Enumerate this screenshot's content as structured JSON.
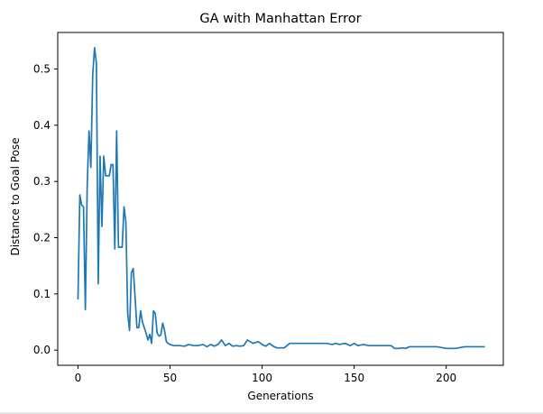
{
  "chart_data": {
    "type": "line",
    "title": "GA with Manhattan Error",
    "xlabel": "Generations",
    "ylabel": "Distance to Goal Pose",
    "xlim": [
      -11,
      231
    ],
    "ylim": [
      -0.027,
      0.565
    ],
    "xticks": [
      0,
      50,
      100,
      150,
      200
    ],
    "yticks": [
      0.0,
      0.1,
      0.2,
      0.3,
      0.4,
      0.5
    ],
    "ytick_labels": [
      "0.0",
      "0.1",
      "0.2",
      "0.3",
      "0.4",
      "0.5"
    ],
    "grid": false,
    "legend": "none",
    "line_color": "#1f77b4",
    "series": [
      {
        "x": [
          0,
          1,
          2,
          3,
          4,
          5,
          6,
          7,
          8,
          9,
          10,
          11,
          12,
          13,
          14,
          15,
          16,
          17,
          18,
          19,
          20,
          21,
          22,
          23,
          24,
          25,
          26,
          27,
          28,
          29,
          30,
          31,
          32,
          33,
          34,
          35,
          36,
          37,
          38,
          39,
          40,
          41,
          42,
          43,
          44,
          45,
          46,
          47,
          48,
          49,
          50,
          52,
          55,
          58,
          60,
          63,
          65,
          68,
          70,
          72,
          74,
          76,
          78,
          80,
          82,
          84,
          86,
          88,
          90,
          92,
          95,
          98,
          100,
          102,
          104,
          106,
          108,
          110,
          112,
          115,
          118,
          120,
          122,
          125,
          128,
          130,
          132,
          135,
          138,
          140,
          142,
          145,
          148,
          150,
          152,
          155,
          158,
          160,
          163,
          165,
          168,
          170,
          172,
          174,
          176,
          178,
          180,
          185,
          190,
          195,
          200,
          205,
          210,
          215,
          221
        ],
        "y": [
          0.09,
          0.276,
          0.258,
          0.255,
          0.072,
          0.29,
          0.39,
          0.325,
          0.49,
          0.538,
          0.51,
          0.118,
          0.345,
          0.22,
          0.345,
          0.31,
          0.31,
          0.31,
          0.33,
          0.33,
          0.18,
          0.39,
          0.183,
          0.183,
          0.183,
          0.255,
          0.228,
          0.065,
          0.035,
          0.138,
          0.145,
          0.095,
          0.04,
          0.04,
          0.07,
          0.05,
          0.04,
          0.03,
          0.018,
          0.028,
          0.012,
          0.07,
          0.065,
          0.03,
          0.025,
          0.027,
          0.048,
          0.035,
          0.015,
          0.012,
          0.01,
          0.008,
          0.008,
          0.007,
          0.01,
          0.008,
          0.008,
          0.01,
          0.006,
          0.01,
          0.007,
          0.01,
          0.018,
          0.008,
          0.012,
          0.007,
          0.008,
          0.007,
          0.008,
          0.018,
          0.012,
          0.015,
          0.01,
          0.007,
          0.012,
          0.007,
          0.004,
          0.004,
          0.004,
          0.012,
          0.012,
          0.012,
          0.012,
          0.012,
          0.012,
          0.012,
          0.012,
          0.012,
          0.01,
          0.012,
          0.01,
          0.012,
          0.008,
          0.012,
          0.008,
          0.01,
          0.008,
          0.008,
          0.008,
          0.008,
          0.008,
          0.008,
          0.003,
          0.003,
          0.004,
          0.003,
          0.006,
          0.006,
          0.006,
          0.006,
          0.003,
          0.003,
          0.006,
          0.006,
          0.006
        ]
      }
    ]
  }
}
